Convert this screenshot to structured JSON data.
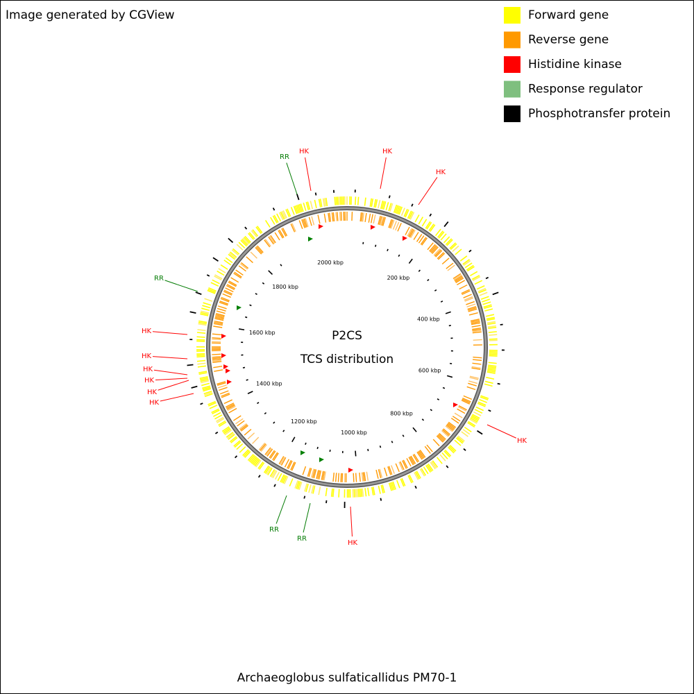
{
  "header": {
    "text": "Image generated by CGView"
  },
  "legend": {
    "items": [
      "Forward gene",
      "Reverse gene",
      "Histidine kinase",
      "Response regulator",
      "Phosphotransfer protein"
    ]
  },
  "center": {
    "title": "P2CS",
    "subtitle": "TCS distribution"
  },
  "ruler": {
    "labels": [
      "200 kbp",
      "400 kbp",
      "600 kbp",
      "800 kbp",
      "1000 kbp",
      "1200 kbp",
      "1400 kbp",
      "1600 kbp",
      "1800 kbp",
      "2000 kbp"
    ]
  },
  "features": {
    "labels": [
      "HK",
      "RR",
      "HK",
      "HK",
      "RR",
      "HK",
      "HK",
      "HK",
      "HK",
      "HK",
      "HK",
      "HK",
      "HK",
      "RR",
      "RR"
    ]
  },
  "footer": {
    "text": "Archaeoglobus sulfaticallidus PM70-1"
  }
}
